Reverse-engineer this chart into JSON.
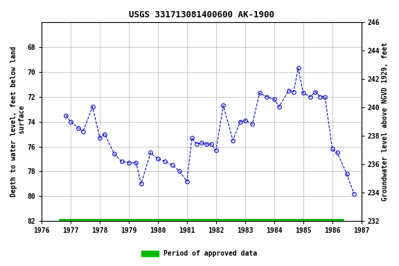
{
  "title": "USGS 331713081400600 AK-1900",
  "ylabel_left": "Depth to water level, feet below land\n surface",
  "ylabel_right": "Groundwater level above NGVD 1929, feet",
  "ylim_left": [
    82,
    66
  ],
  "ylim_right": [
    232,
    246
  ],
  "xlim": [
    1976,
    1987
  ],
  "xticks": [
    1976,
    1977,
    1978,
    1979,
    1980,
    1981,
    1982,
    1983,
    1984,
    1985,
    1986,
    1987
  ],
  "yticks_left": [
    68,
    70,
    72,
    74,
    76,
    78,
    80,
    82
  ],
  "yticks_right": [
    232,
    234,
    236,
    238,
    240,
    242,
    244,
    246
  ],
  "bg_color": "#ffffff",
  "grid_color": "#b0b0b0",
  "line_color": "#0000cc",
  "marker_edgecolor": "#0000cc",
  "legend_bar_color": "#00bb00",
  "legend_text": "Period of approved data",
  "x_data": [
    1976.83,
    1977.0,
    1977.25,
    1977.42,
    1977.75,
    1978.0,
    1978.17,
    1978.5,
    1978.75,
    1979.0,
    1979.25,
    1979.42,
    1979.75,
    1980.0,
    1980.25,
    1980.5,
    1980.75,
    1981.0,
    1981.17,
    1981.33,
    1981.5,
    1981.67,
    1981.83,
    1982.0,
    1982.25,
    1982.58,
    1982.83,
    1983.0,
    1983.25,
    1983.5,
    1983.75,
    1984.0,
    1984.17,
    1984.5,
    1984.67,
    1984.83,
    1985.0,
    1985.25,
    1985.42,
    1985.58,
    1985.75,
    1986.0,
    1986.17,
    1986.5,
    1986.75
  ],
  "y_data": [
    73.5,
    74.0,
    74.5,
    74.8,
    72.8,
    75.3,
    75.0,
    76.6,
    77.2,
    77.3,
    77.3,
    79.0,
    76.5,
    77.0,
    77.2,
    77.5,
    78.0,
    78.8,
    75.3,
    75.8,
    75.7,
    75.8,
    75.8,
    76.3,
    72.7,
    75.5,
    74.0,
    73.9,
    74.2,
    71.7,
    72.0,
    72.2,
    72.8,
    71.5,
    71.6,
    69.7,
    71.7,
    72.0,
    71.6,
    72.0,
    72.0,
    76.2,
    76.5,
    78.2,
    79.8
  ],
  "approved_bar_xstart": 1976.6,
  "approved_bar_xend": 1986.38
}
